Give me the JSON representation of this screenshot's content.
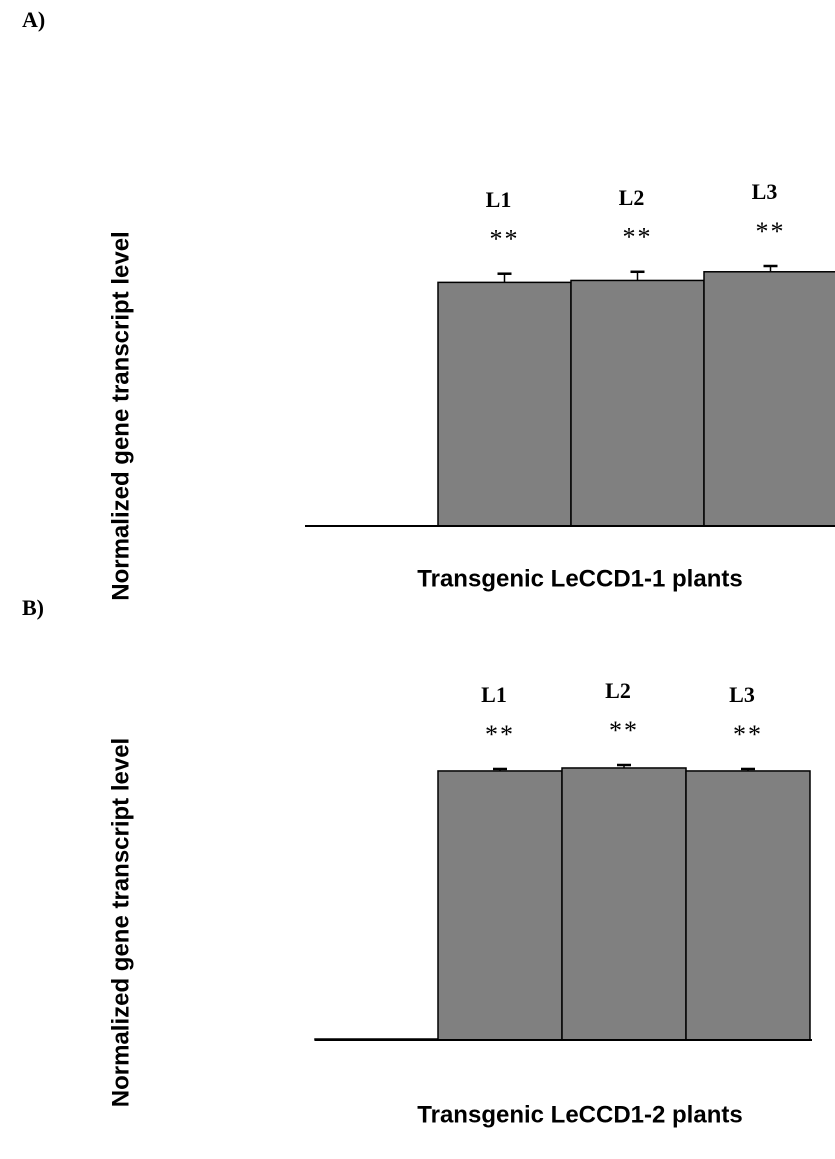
{
  "chart_data": [
    {
      "type": "bar",
      "panel_label": "A)",
      "y_label": "Normalized gene transcript level",
      "x_label": "Transgenic LeCCD1-1 plants",
      "categories": [
        null,
        "L1",
        "L2",
        "L3"
      ],
      "significance": [
        null,
        "**",
        "**",
        "**"
      ],
      "values": [
        0,
        253,
        255,
        264
      ],
      "errors": [
        0,
        9,
        9,
        6
      ],
      "color": "#808080"
    },
    {
      "type": "bar",
      "panel_label": "B)",
      "y_label": "Normalized gene transcript level",
      "x_label": "Transgenic LeCCD1-2 plants",
      "categories": [
        null,
        "L1",
        "L2",
        "L3"
      ],
      "significance": [
        null,
        "**",
        "**",
        "**"
      ],
      "values": [
        1,
        271,
        274,
        271
      ],
      "errors": [
        0,
        2,
        3,
        2
      ],
      "color": "#808080"
    }
  ]
}
